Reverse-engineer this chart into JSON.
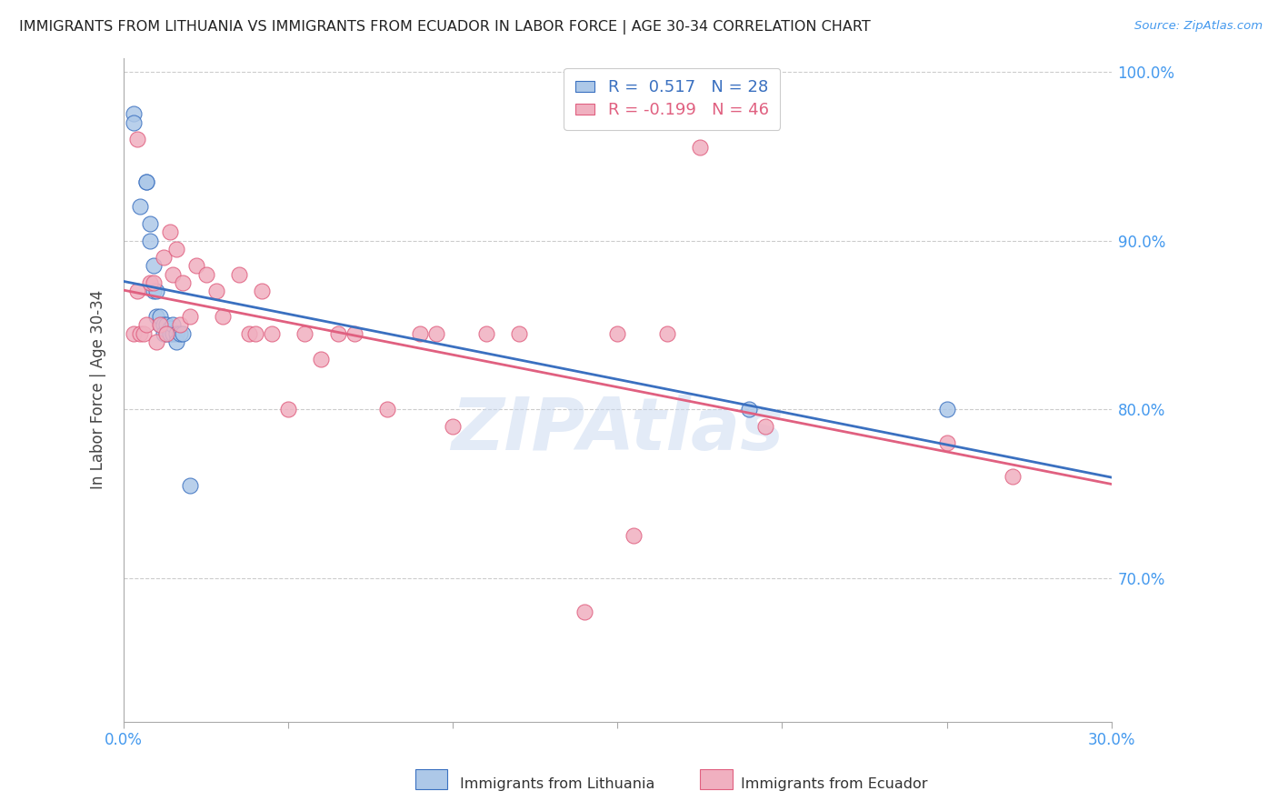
{
  "title": "IMMIGRANTS FROM LITHUANIA VS IMMIGRANTS FROM ECUADOR IN LABOR FORCE | AGE 30-34 CORRELATION CHART",
  "source": "Source: ZipAtlas.com",
  "ylabel": "In Labor Force | Age 30-34",
  "xmin": 0.0,
  "xmax": 0.3,
  "ymin": 0.615,
  "ymax": 1.008,
  "yticks": [
    0.7,
    0.8,
    0.9,
    1.0
  ],
  "ytick_labels": [
    "70.0%",
    "80.0%",
    "90.0%",
    "100.0%"
  ],
  "xticks": [
    0.0,
    0.05,
    0.1,
    0.15,
    0.2,
    0.25,
    0.3
  ],
  "xtick_labels_shown": [
    "0.0%",
    "",
    "",
    "",
    "",
    "",
    "30.0%"
  ],
  "blue_color": "#adc8e8",
  "blue_line_color": "#3a70c0",
  "pink_color": "#f0b0c0",
  "pink_line_color": "#e06080",
  "lith_x": [
    0.003,
    0.003,
    0.005,
    0.007,
    0.007,
    0.008,
    0.008,
    0.009,
    0.009,
    0.01,
    0.01,
    0.011,
    0.011,
    0.012,
    0.012,
    0.013,
    0.013,
    0.014,
    0.014,
    0.015,
    0.015,
    0.016,
    0.016,
    0.017,
    0.018,
    0.02,
    0.19,
    0.25
  ],
  "lith_y": [
    0.975,
    0.97,
    0.92,
    0.935,
    0.935,
    0.9,
    0.91,
    0.885,
    0.87,
    0.855,
    0.87,
    0.85,
    0.855,
    0.85,
    0.845,
    0.85,
    0.845,
    0.848,
    0.845,
    0.845,
    0.85,
    0.845,
    0.84,
    0.845,
    0.845,
    0.755,
    0.8,
    0.8
  ],
  "ecu_x": [
    0.003,
    0.004,
    0.004,
    0.005,
    0.006,
    0.007,
    0.008,
    0.009,
    0.01,
    0.011,
    0.012,
    0.013,
    0.014,
    0.015,
    0.016,
    0.017,
    0.018,
    0.02,
    0.022,
    0.025,
    0.028,
    0.03,
    0.035,
    0.038,
    0.04,
    0.042,
    0.045,
    0.05,
    0.055,
    0.06,
    0.065,
    0.07,
    0.08,
    0.09,
    0.095,
    0.1,
    0.11,
    0.12,
    0.14,
    0.15,
    0.155,
    0.165,
    0.175,
    0.195,
    0.25,
    0.27
  ],
  "ecu_y": [
    0.845,
    0.96,
    0.87,
    0.845,
    0.845,
    0.85,
    0.875,
    0.875,
    0.84,
    0.85,
    0.89,
    0.845,
    0.905,
    0.88,
    0.895,
    0.85,
    0.875,
    0.855,
    0.885,
    0.88,
    0.87,
    0.855,
    0.88,
    0.845,
    0.845,
    0.87,
    0.845,
    0.8,
    0.845,
    0.83,
    0.845,
    0.845,
    0.8,
    0.845,
    0.845,
    0.79,
    0.845,
    0.845,
    0.68,
    0.845,
    0.725,
    0.845,
    0.955,
    0.79,
    0.78,
    0.76
  ]
}
